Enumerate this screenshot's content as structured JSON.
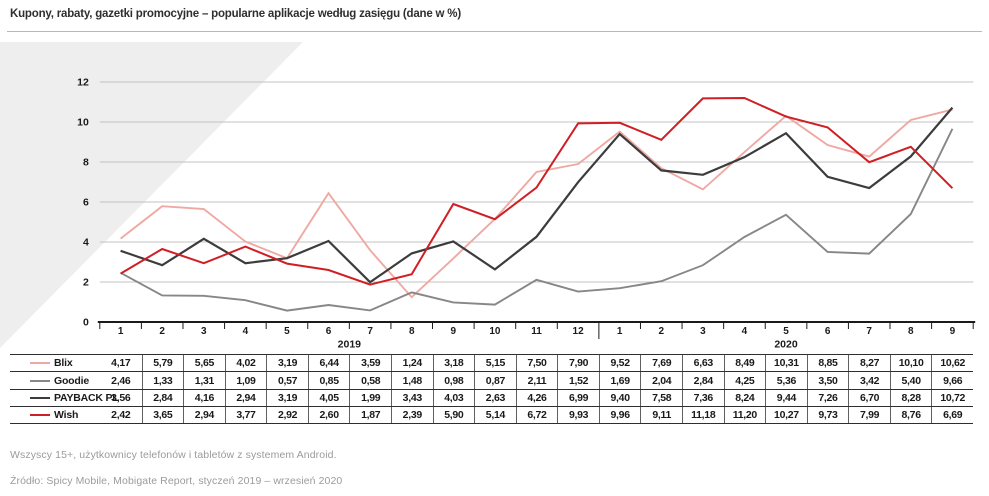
{
  "header": {
    "title": "Kupony, rabaty, gazetki promocyjne – popularne aplikacje według zasięgu (dane w %)"
  },
  "chart_data": {
    "type": "line",
    "title": "Kupony, rabaty, gazetki promocyjne – popularne aplikacje według zasięgu (dane w %)",
    "unit": "%",
    "ylim": [
      0,
      12
    ],
    "yticks": [
      0,
      2,
      4,
      6,
      8,
      10,
      12
    ],
    "grid": true,
    "legend_position": "table-left-column",
    "decimal_separator": ",",
    "x_groups": [
      {
        "year": "2019",
        "months": [
          "1",
          "2",
          "3",
          "4",
          "5",
          "6",
          "7",
          "8",
          "9",
          "10",
          "11",
          "12"
        ]
      },
      {
        "year": "2020",
        "months": [
          "1",
          "2",
          "3",
          "4",
          "5",
          "6",
          "7",
          "8",
          "9"
        ]
      }
    ],
    "series": [
      {
        "name": "Blix",
        "color": "#efa9a3",
        "stroke_width": 1.9,
        "values": [
          4.17,
          5.79,
          5.65,
          4.02,
          3.19,
          6.44,
          3.59,
          1.24,
          3.18,
          5.15,
          7.5,
          7.9,
          9.52,
          7.69,
          6.63,
          8.49,
          10.31,
          8.85,
          8.27,
          10.1,
          10.62
        ]
      },
      {
        "name": "Goodie",
        "color": "#878787",
        "stroke_width": 1.9,
        "values": [
          2.46,
          1.33,
          1.31,
          1.09,
          0.57,
          0.85,
          0.58,
          1.48,
          0.98,
          0.87,
          2.11,
          1.52,
          1.69,
          2.04,
          2.84,
          4.25,
          5.36,
          3.5,
          3.42,
          5.4,
          9.66
        ]
      },
      {
        "name": "PAYBACK PL",
        "color": "#3c3c3c",
        "stroke_width": 2.2,
        "values": [
          3.56,
          2.84,
          4.16,
          2.94,
          3.19,
          4.05,
          1.99,
          3.43,
          4.03,
          2.63,
          4.26,
          6.99,
          9.4,
          7.58,
          7.36,
          8.24,
          9.44,
          7.26,
          6.7,
          8.28,
          10.72
        ]
      },
      {
        "name": "Wish",
        "color": "#d01f24",
        "stroke_width": 2.0,
        "values": [
          2.42,
          3.65,
          2.94,
          3.77,
          2.92,
          2.6,
          1.87,
          2.39,
          5.9,
          5.14,
          6.72,
          9.93,
          9.96,
          9.11,
          11.18,
          11.2,
          10.27,
          9.73,
          7.99,
          8.76,
          6.69
        ]
      }
    ],
    "colors": {
      "grid": "#c3c3c3",
      "axis": "#1a1a1a",
      "tick_label": "#1a1a1a",
      "watermark": "#eeeeee"
    }
  },
  "footer": {
    "note": "Wszyscy 15+, użytkownicy telefonów i tabletów z systemem Android.",
    "source": "Źródło: Spicy Mobile, Mobigate Report, styczeń 2019 – wrzesień 2020"
  }
}
